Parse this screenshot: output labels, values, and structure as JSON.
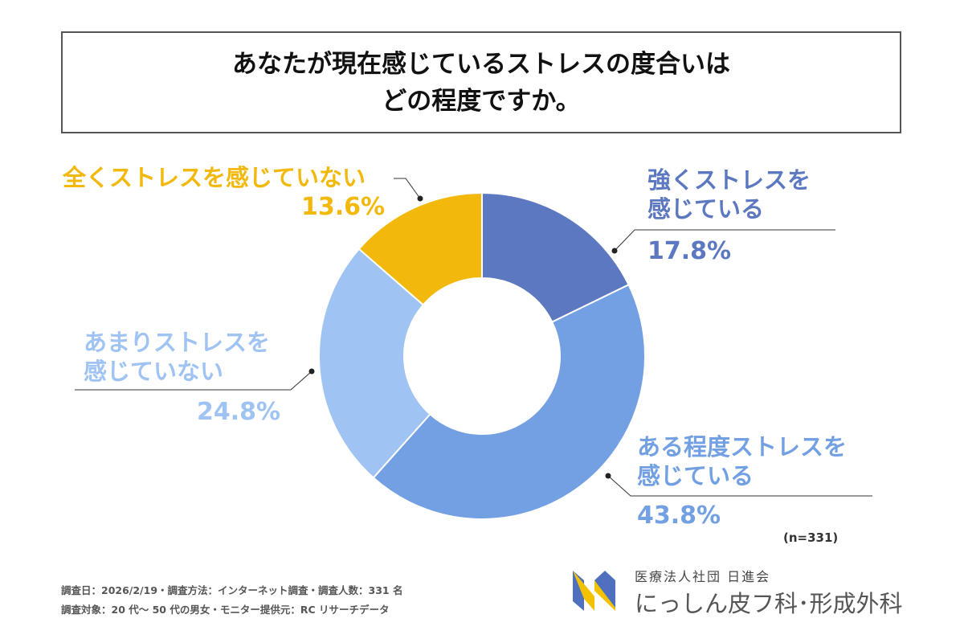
{
  "title": {
    "line1": "あなたが現在感じているストレスの度合いは",
    "line2": "どの程度ですか。"
  },
  "chart_data": {
    "type": "pie",
    "variant": "donut",
    "title": "あなたが現在感じているストレスの度合いはどの程度ですか。",
    "categories": [
      "強くストレスを感じている",
      "ある程度ストレスを感じている",
      "あまりストレスを感じていない",
      "全くストレスを感じていない"
    ],
    "values": [
      17.8,
      43.8,
      24.8,
      13.6
    ],
    "value_labels": [
      "17.8%",
      "43.8%",
      "24.8%",
      "13.6%"
    ],
    "label_lines": [
      [
        "強くストレスを",
        "感じている"
      ],
      [
        "ある程度ストレスを",
        "感じている"
      ],
      [
        "あまりストレスを",
        "感じていない"
      ],
      [
        "全くストレスを感じていない"
      ]
    ],
    "colors": [
      "#5b78c0",
      "#72a0e3",
      "#9fc3f2",
      "#f2b80c"
    ],
    "unit": "%"
  },
  "sample_size": "(n=331)",
  "footer": {
    "line1": "調査日：2026/2/19・調査方法：インターネット調査・調査人数：331 名",
    "line2": "調査対象：20 代～ 50 代の男女・モニター提供元：RC リサーチデータ"
  },
  "logo": {
    "org": "医療法人社団 日進会",
    "clinic": "にっしん皮フ科･形成外科"
  }
}
